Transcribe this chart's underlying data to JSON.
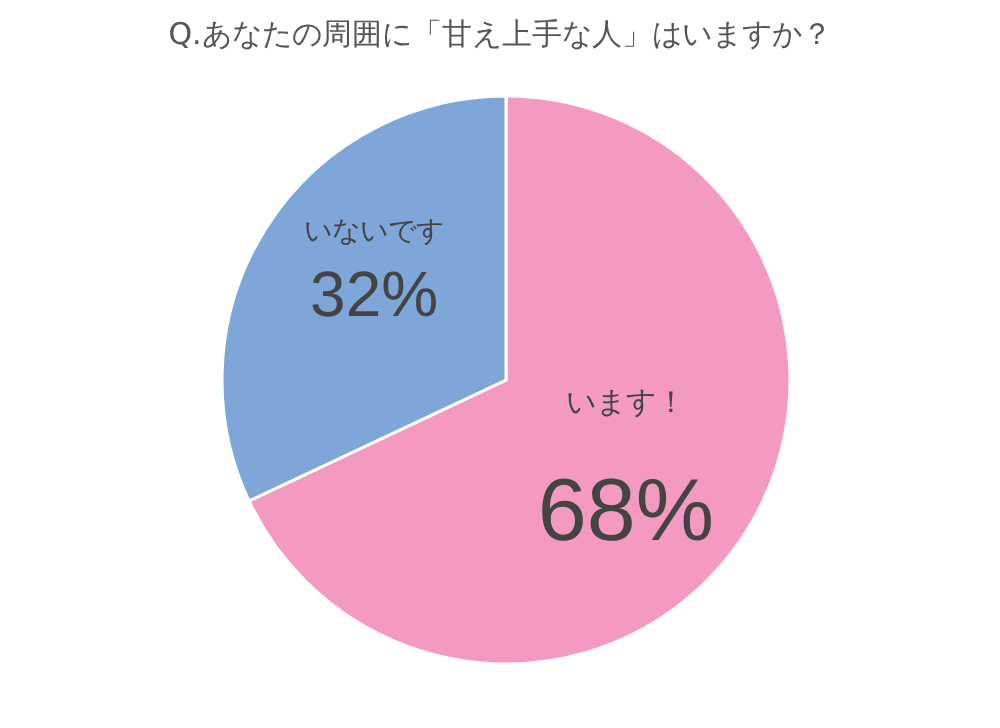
{
  "chart_data": {
    "type": "pie",
    "title": "Q.あなたの周囲に「甘え上手な人」はいますか？",
    "categories": [
      "います！",
      "いないです"
    ],
    "values": [
      68,
      32
    ],
    "colors": [
      "#f49ac2",
      "#7ea6d9"
    ],
    "value_labels": [
      "68%",
      "32%"
    ],
    "legend": false
  }
}
